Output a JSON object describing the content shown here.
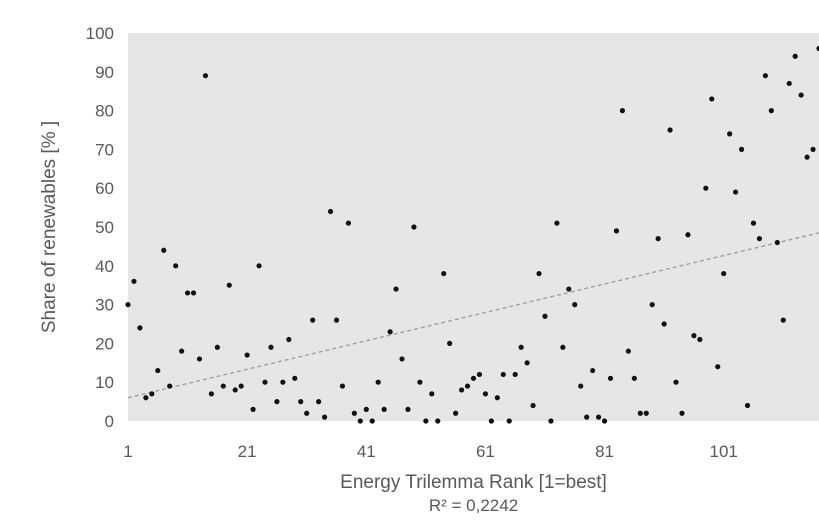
{
  "chart_data": {
    "type": "scatter",
    "xlabel": "Energy Trilemma Rank [1=best]",
    "ylabel": "Share of renewables [% ]",
    "annotation": "R² = 0,2242",
    "xlim": [
      1,
      117
    ],
    "ylim": [
      0,
      100
    ],
    "x_ticks": [
      1,
      21,
      41,
      61,
      81,
      101
    ],
    "y_ticks": [
      0,
      10,
      20,
      30,
      40,
      50,
      60,
      70,
      80,
      90,
      100
    ],
    "grid": false,
    "legend": "none",
    "colors": {
      "plot_background": "#e6e6e6",
      "points": "#111111",
      "trendline": "#9a9a9a",
      "text": "#595959"
    },
    "trendline": {
      "type": "linear",
      "x": [
        1,
        117
      ],
      "y": [
        6,
        48.5
      ]
    },
    "points": [
      [
        1,
        30
      ],
      [
        2,
        36
      ],
      [
        3,
        24
      ],
      [
        4,
        6
      ],
      [
        5,
        7
      ],
      [
        6,
        13
      ],
      [
        7,
        44
      ],
      [
        8,
        9
      ],
      [
        9,
        40
      ],
      [
        10,
        18
      ],
      [
        11,
        33
      ],
      [
        12,
        33
      ],
      [
        13,
        16
      ],
      [
        14,
        89
      ],
      [
        15,
        7
      ],
      [
        16,
        19
      ],
      [
        17,
        9
      ],
      [
        18,
        35
      ],
      [
        19,
        8
      ],
      [
        20,
        9
      ],
      [
        21,
        17
      ],
      [
        22,
        3
      ],
      [
        23,
        40
      ],
      [
        24,
        10
      ],
      [
        25,
        19
      ],
      [
        26,
        5
      ],
      [
        27,
        10
      ],
      [
        28,
        21
      ],
      [
        29,
        11
      ],
      [
        30,
        5
      ],
      [
        31,
        2
      ],
      [
        32,
        26
      ],
      [
        33,
        5
      ],
      [
        34,
        1
      ],
      [
        35,
        54
      ],
      [
        36,
        26
      ],
      [
        37,
        9
      ],
      [
        38,
        51
      ],
      [
        39,
        2
      ],
      [
        40,
        0
      ],
      [
        41,
        3
      ],
      [
        42,
        0
      ],
      [
        43,
        10
      ],
      [
        44,
        3
      ],
      [
        45,
        23
      ],
      [
        46,
        34
      ],
      [
        47,
        16
      ],
      [
        48,
        3
      ],
      [
        49,
        50
      ],
      [
        50,
        10
      ],
      [
        51,
        0
      ],
      [
        52,
        7
      ],
      [
        53,
        0
      ],
      [
        54,
        38
      ],
      [
        55,
        20
      ],
      [
        56,
        2
      ],
      [
        57,
        8
      ],
      [
        58,
        9
      ],
      [
        59,
        11
      ],
      [
        60,
        12
      ],
      [
        61,
        7
      ],
      [
        62,
        0
      ],
      [
        63,
        6
      ],
      [
        64,
        12
      ],
      [
        65,
        0
      ],
      [
        66,
        12
      ],
      [
        67,
        19
      ],
      [
        68,
        15
      ],
      [
        69,
        4
      ],
      [
        70,
        38
      ],
      [
        71,
        27
      ],
      [
        72,
        0
      ],
      [
        73,
        51
      ],
      [
        74,
        19
      ],
      [
        75,
        34
      ],
      [
        76,
        30
      ],
      [
        77,
        9
      ],
      [
        78,
        1
      ],
      [
        79,
        13
      ],
      [
        80,
        1
      ],
      [
        81,
        0
      ],
      [
        82,
        11
      ],
      [
        83,
        49
      ],
      [
        84,
        80
      ],
      [
        85,
        18
      ],
      [
        86,
        11
      ],
      [
        87,
        2
      ],
      [
        88,
        2
      ],
      [
        89,
        30
      ],
      [
        90,
        47
      ],
      [
        91,
        25
      ],
      [
        92,
        75
      ],
      [
        93,
        10
      ],
      [
        94,
        2
      ],
      [
        95,
        48
      ],
      [
        96,
        22
      ],
      [
        97,
        21
      ],
      [
        98,
        60
      ],
      [
        99,
        83
      ],
      [
        100,
        14
      ],
      [
        101,
        38
      ],
      [
        102,
        74
      ],
      [
        103,
        59
      ],
      [
        104,
        70
      ],
      [
        105,
        4
      ],
      [
        106,
        51
      ],
      [
        107,
        47
      ],
      [
        108,
        89
      ],
      [
        109,
        80
      ],
      [
        110,
        46
      ],
      [
        111,
        26
      ],
      [
        112,
        87
      ],
      [
        113,
        94
      ],
      [
        114,
        84
      ],
      [
        115,
        68
      ],
      [
        116,
        70
      ],
      [
        117,
        96
      ]
    ]
  }
}
